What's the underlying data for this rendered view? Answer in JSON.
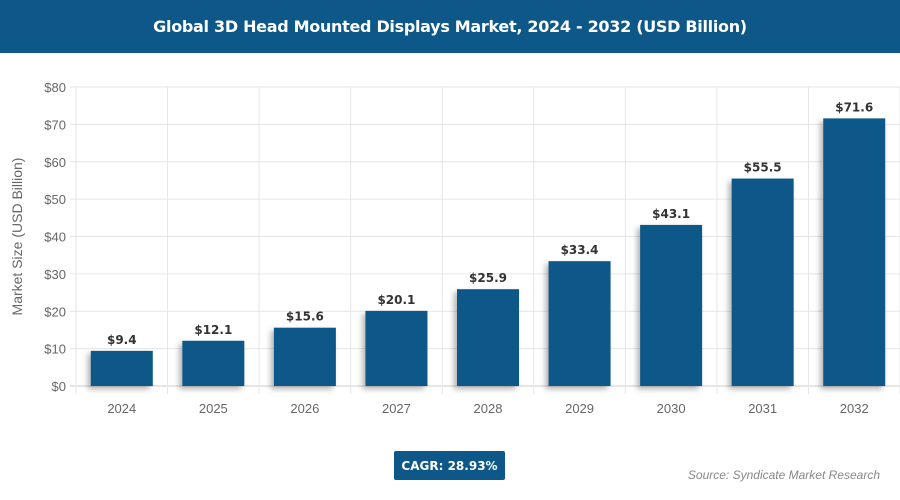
{
  "title": "Global 3D Head Mounted Displays Market, 2024 - 2032 (USD Billion)",
  "cagr": "CAGR: 28.93%",
  "source": "Source: Syndicate Market Research",
  "colors": {
    "bar": "#0d5888",
    "header": "#0d5888"
  },
  "chart_data": {
    "type": "bar",
    "title": "Global 3D Head Mounted Displays Market, 2024 - 2032 (USD Billion)",
    "xlabel": "",
    "ylabel": "Market Size (USD Billion)",
    "categories": [
      "2024",
      "2025",
      "2026",
      "2027",
      "2028",
      "2029",
      "2030",
      "2031",
      "2032"
    ],
    "values": [
      9.4,
      12.1,
      15.6,
      20.1,
      25.9,
      33.4,
      43.1,
      55.5,
      71.6
    ],
    "data_labels": [
      "$9.4",
      "$12.1",
      "$15.6",
      "$20.1",
      "$25.9",
      "$33.4",
      "$43.1",
      "$55.5",
      "$71.6"
    ],
    "ylim": [
      0,
      80
    ],
    "yticks": [
      0,
      10,
      20,
      30,
      40,
      50,
      60,
      70,
      80
    ],
    "ytick_labels": [
      "$0",
      "$10",
      "$20",
      "$30",
      "$40",
      "$50",
      "$60",
      "$70",
      "$80"
    ],
    "grid": true
  }
}
